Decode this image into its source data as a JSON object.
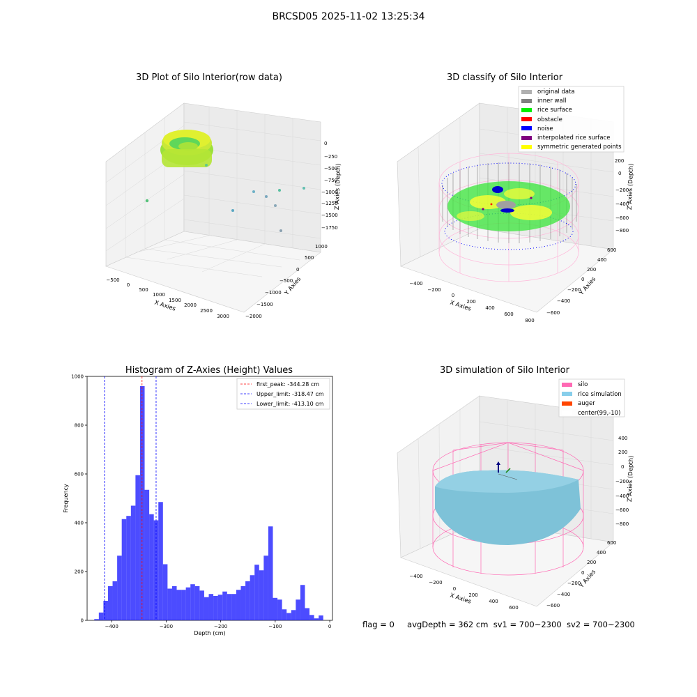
{
  "suptitle": "BRCSD05 2025-11-02 13:25:34",
  "panels": {
    "raw": {
      "title": "3D Plot of Silo Interior(row data)",
      "xlabel": "X Axies",
      "ylabel": "Y Axies",
      "zlabel": "Z Axies (Depth)",
      "xticks": [
        "−500",
        "0",
        "500",
        "1000",
        "1500",
        "2000",
        "2500",
        "3000"
      ],
      "yticks": [
        "1000",
        "500",
        "0",
        "−500",
        "−1000",
        "−1500",
        "−2000"
      ],
      "zticks": [
        "0",
        "−250",
        "−500",
        "−750",
        "−1000",
        "−1250",
        "−1500",
        "−1750"
      ]
    },
    "classify": {
      "title": "3D classify of Silo Interior",
      "legend": [
        {
          "label": "original data",
          "color": "#b0b0b0"
        },
        {
          "label": "inner wall",
          "color": "#808080"
        },
        {
          "label": "rice surface",
          "color": "#00ee00"
        },
        {
          "label": "obstacle",
          "color": "#ff0000"
        },
        {
          "label": "noise",
          "color": "#0000ff"
        },
        {
          "label": "interpolated rice surface",
          "color": "#800080"
        },
        {
          "label": "symmetric generated points",
          "color": "#ffff00"
        }
      ],
      "xlabel": "X Axies",
      "ylabel": "Y Axies",
      "zlabel": "Z Axies (Depth)",
      "xticks": [
        "−400",
        "−200",
        "0",
        "200",
        "400",
        "600",
        "800"
      ],
      "yticks": [
        "600",
        "400",
        "200",
        "0",
        "−200",
        "−400",
        "−600"
      ],
      "zticks": [
        "200",
        "0",
        "−200",
        "−400",
        "−600",
        "−800"
      ]
    },
    "simulation": {
      "title": "3D simulation of Silo Interior",
      "legend": [
        {
          "label": "silo",
          "color": "#ff69b4"
        },
        {
          "label": "rice simulation",
          "color": "#87ceeb"
        },
        {
          "label": "auger",
          "color": "#ff4500"
        },
        {
          "label": "center(99,-10)",
          "color": "#ffffff"
        }
      ],
      "xlabel": "X Axies",
      "ylabel": "Y Axies",
      "zlabel": "Z Axies (Depth)",
      "xticks": [
        "−400",
        "−200",
        "0",
        "200",
        "400",
        "600"
      ],
      "yticks": [
        "600",
        "400",
        "200",
        "0",
        "−200",
        "−400",
        "−600"
      ],
      "zticks": [
        "400",
        "200",
        "0",
        "−200",
        "−400",
        "−600",
        "−800"
      ]
    }
  },
  "chart_data": {
    "type": "bar",
    "title": "Histogram of Z-Axies (Height) Values",
    "xlabel": "Depth (cm)",
    "ylabel": "Frequency",
    "xlim": [
      -445,
      5
    ],
    "ylim": [
      0,
      1000
    ],
    "xticks": [
      -400,
      -300,
      -200,
      -100,
      0
    ],
    "yticks": [
      0,
      200,
      400,
      600,
      800,
      1000
    ],
    "bin_start": -431.9,
    "bin_width": 8.4,
    "values": [
      5,
      32,
      80,
      140,
      160,
      265,
      415,
      428,
      470,
      595,
      960,
      535,
      435,
      410,
      485,
      230,
      130,
      140,
      125,
      125,
      135,
      148,
      140,
      122,
      95,
      108,
      100,
      105,
      118,
      108,
      108,
      125,
      140,
      160,
      185,
      228,
      205,
      265,
      385,
      92,
      85,
      45,
      30,
      42,
      85,
      145,
      50,
      22,
      8,
      20
    ],
    "bar_color": "#0000ff",
    "lines": [
      {
        "label": "first_peak: -344.28 cm",
        "x": -344.28,
        "color": "#ff0000"
      },
      {
        "label": "Upper_limit: -318.47 cm",
        "x": -318.47,
        "color": "#0000ff"
      },
      {
        "label": "Lower_limit: -413.10 cm",
        "x": -413.1,
        "color": "#0000ff"
      }
    ],
    "legend_position": "top-right"
  },
  "footer": {
    "flag": "flag = 0",
    "avg": "avgDepth = 362 cm",
    "sv1": "sv1 = 700~2300",
    "sv2": "sv2 = 700~2300"
  }
}
